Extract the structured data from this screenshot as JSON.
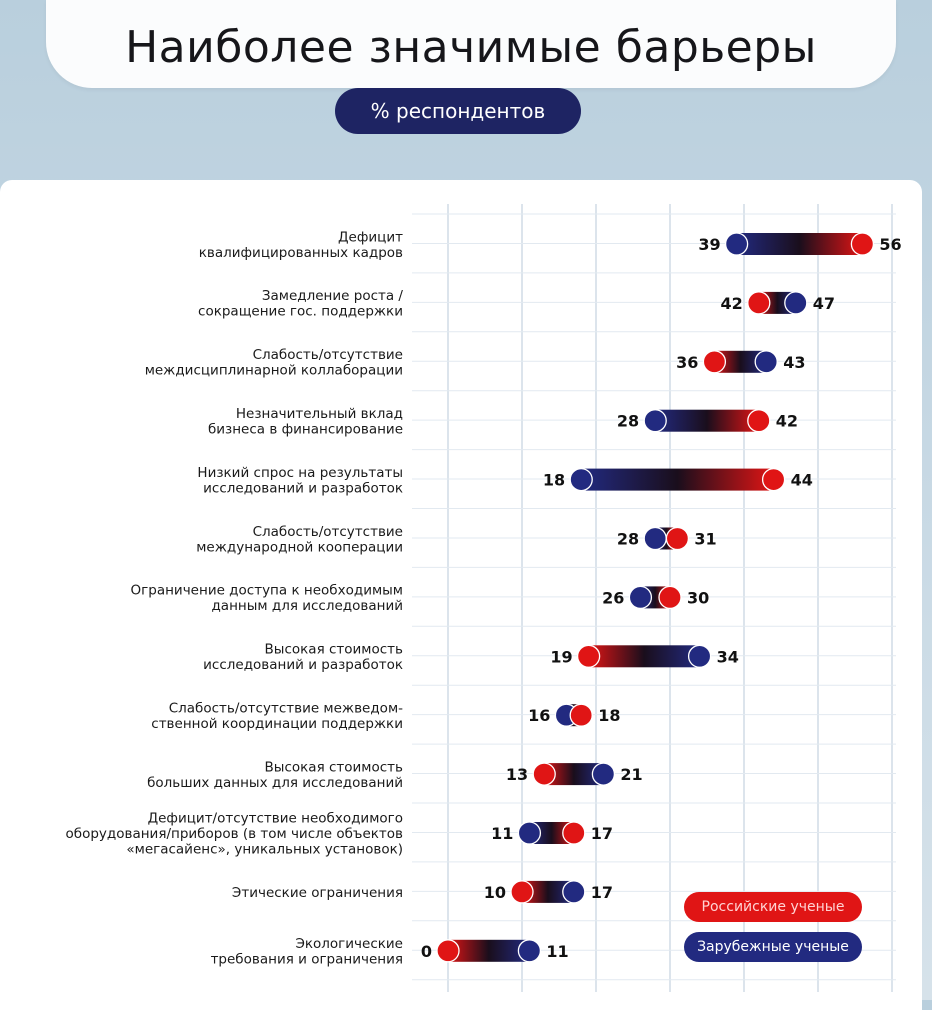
{
  "title": "Наиболее значимые барьеры",
  "subtitle": "% респондентов",
  "colors": {
    "russian": "#e01515",
    "foreign": "#222a80",
    "navy": "#1e2463"
  },
  "legend": {
    "russian_label": "Российские ученые",
    "foreign_label": "Зарубежные ученые"
  },
  "chart_data": {
    "type": "dumbbell",
    "title": "Наиболее значимые барьеры",
    "subtitle": "% респондентов",
    "xlim": [
      0,
      60
    ],
    "grid": true,
    "legend_position": "bottom-right",
    "series": [
      {
        "name": "Российские ученые",
        "color": "#e01515"
      },
      {
        "name": "Зарубежные ученые",
        "color": "#222a80"
      }
    ],
    "rows": [
      {
        "label": [
          "Дефицит",
          "квалифицированных кадров"
        ],
        "russian": 56,
        "foreign": 39
      },
      {
        "label": [
          "Замедление роста /",
          "сокращение гос. поддержки"
        ],
        "russian": 42,
        "foreign": 47
      },
      {
        "label": [
          "Слабость/отсутствие",
          "междисциплинарной коллаборации"
        ],
        "russian": 36,
        "foreign": 43
      },
      {
        "label": [
          "Незначительный вклад",
          "бизнеса в финансирование"
        ],
        "russian": 42,
        "foreign": 28
      },
      {
        "label": [
          "Низкий спрос на результаты",
          "исследований и разработок"
        ],
        "russian": 44,
        "foreign": 18
      },
      {
        "label": [
          "Слабость/отсутствие",
          "международной кооперации"
        ],
        "russian": 31,
        "foreign": 28
      },
      {
        "label": [
          "Ограничение доступа к необходимым",
          "данным для исследований"
        ],
        "russian": 30,
        "foreign": 26
      },
      {
        "label": [
          "Высокая стоимость",
          "исследований и разработок"
        ],
        "russian": 19,
        "foreign": 34
      },
      {
        "label": [
          "Слабость/отсутствие межведом-",
          "ственной координации поддержки"
        ],
        "russian": 18,
        "foreign": 16
      },
      {
        "label": [
          "Высокая стоимость",
          "больших данных для исследований"
        ],
        "russian": 13,
        "foreign": 21
      },
      {
        "label": [
          "Дефицит/отсутствие необходимого",
          "оборудования/приборов (в том числе объектов",
          "«мегасайенс», уникальных установок)"
        ],
        "russian": 17,
        "foreign": 11
      },
      {
        "label": [
          "Этические ограничения"
        ],
        "russian": 10,
        "foreign": 17
      },
      {
        "label": [
          "Экологические",
          "требования и ограничения"
        ],
        "russian": 0,
        "foreign": 11
      }
    ]
  }
}
